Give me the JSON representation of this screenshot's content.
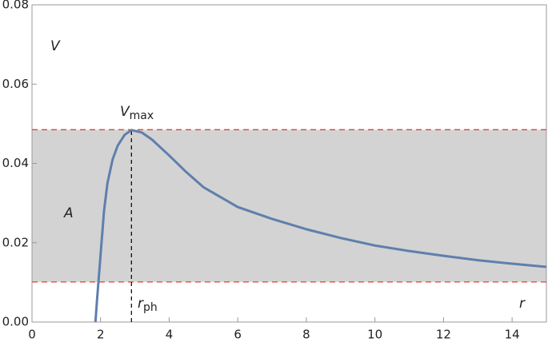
{
  "chart_data": {
    "type": "line",
    "x_label": "r",
    "y_label": "V",
    "annotations": {
      "vmax": {
        "main": "V",
        "sub": "max"
      },
      "area": "A",
      "rph": {
        "main": "r",
        "sub": "ph"
      }
    },
    "series": [
      {
        "color": "#5f7fad",
        "x": [
          1.85,
          1.9,
          2.0,
          2.1,
          2.2,
          2.35,
          2.5,
          2.7,
          2.9,
          3.2,
          3.5,
          4.0,
          4.5,
          5.0,
          6.0,
          7.0,
          8.0,
          9.0,
          10.0,
          11.0,
          12.0,
          13.0,
          14.0,
          15.0
        ],
        "values": [
          0.0,
          0.006,
          0.017,
          0.028,
          0.035,
          0.041,
          0.0445,
          0.0472,
          0.0484,
          0.0478,
          0.046,
          0.042,
          0.0378,
          0.034,
          0.029,
          0.026,
          0.0234,
          0.0212,
          0.0193,
          0.0179,
          0.0167,
          0.0156,
          0.0147,
          0.0139
        ]
      }
    ],
    "hlines": {
      "values": [
        0.0485,
        0.0101
      ],
      "color": "#e0403a"
    },
    "vline": {
      "value": 2.9,
      "color": "#000000"
    },
    "fill_color": "#d3d3d3",
    "xlim": [
      0,
      15
    ],
    "ylim": [
      0,
      0.08
    ],
    "xticks": [
      0,
      2,
      4,
      6,
      8,
      10,
      12,
      14
    ],
    "yticks": [
      {
        "value": 0,
        "label": "0.00"
      },
      {
        "value": 0.02,
        "label": "0.02"
      },
      {
        "value": 0.04,
        "label": "0.04"
      },
      {
        "value": 0.06,
        "label": "0.06"
      },
      {
        "value": 0.08,
        "label": "0.08"
      }
    ]
  }
}
